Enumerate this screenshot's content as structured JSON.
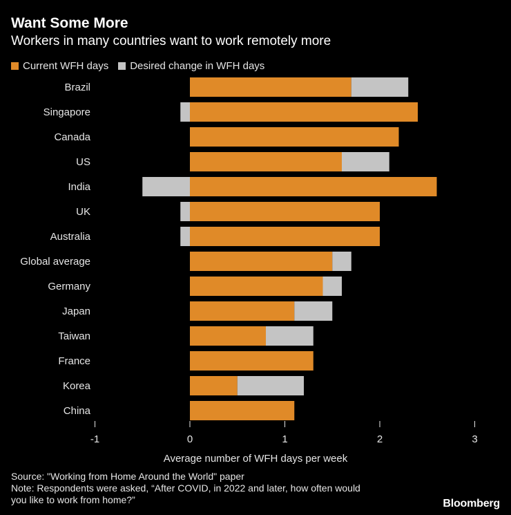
{
  "header": {
    "title": "Want Some More",
    "subtitle": "Workers in many countries want to work remotely more"
  },
  "legend": {
    "current_label": "Current WFH days",
    "desired_label": "Desired change in WFH days"
  },
  "colors": {
    "current": "#e08a28",
    "desired": "#c4c4c4",
    "background": "#000000"
  },
  "chart_data": {
    "type": "bar",
    "orientation": "horizontal",
    "stacked": true,
    "categories": [
      "Brazil",
      "Singapore",
      "Canada",
      "US",
      "India",
      "UK",
      "Australia",
      "Global average",
      "Germany",
      "Japan",
      "Taiwan",
      "France",
      "Korea",
      "China"
    ],
    "series": [
      {
        "name": "Current WFH days",
        "values": [
          1.7,
          2.4,
          2.2,
          1.6,
          2.6,
          2.0,
          2.0,
          1.5,
          1.4,
          1.1,
          0.8,
          1.3,
          0.5,
          1.1
        ]
      },
      {
        "name": "Desired change in WFH days",
        "values": [
          0.6,
          -0.1,
          0.0,
          0.5,
          -0.5,
          -0.1,
          -0.1,
          0.2,
          0.2,
          0.4,
          0.5,
          0.0,
          0.7,
          0.0
        ]
      }
    ],
    "xlim": [
      -1,
      3
    ],
    "xticks": [
      "-1",
      "0",
      "1",
      "2",
      "3"
    ],
    "xlabel": "Average number of WFH days per week",
    "ylabel": ""
  },
  "footer": {
    "source": "Source: \"Working from Home Around the World\" paper",
    "note_line1": "Note: Respondents were asked, “After COVID, in 2022 and later, how often would",
    "note_line2": "you like to work from home?”",
    "brand": "Bloomberg"
  }
}
